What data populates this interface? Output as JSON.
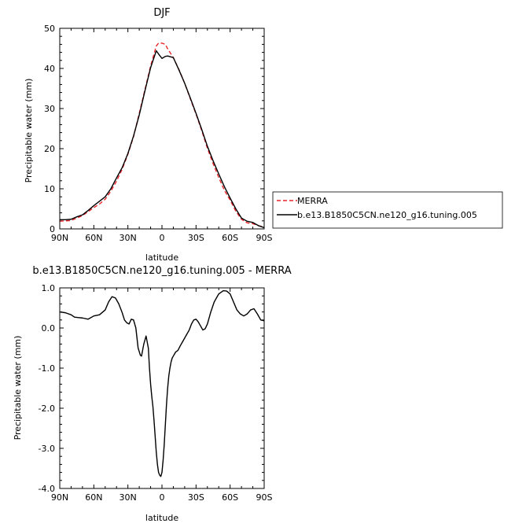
{
  "chart_data": [
    {
      "type": "line",
      "title": "DJF",
      "xlabel": "latitude",
      "ylabel": "Precipitable water (mm)",
      "xlim": [
        90,
        -90
      ],
      "ylim": [
        0,
        50
      ],
      "x_ticks": [
        90,
        60,
        30,
        0,
        -30,
        -60,
        -90
      ],
      "x_tick_labels": [
        "90N",
        "60N",
        "30N",
        "0",
        "30S",
        "60S",
        "90S"
      ],
      "y_ticks": [
        0,
        10,
        20,
        30,
        40,
        50
      ],
      "y_tick_labels": [
        "0",
        "10",
        "20",
        "30",
        "40",
        "50"
      ],
      "legend_position": "right",
      "series": [
        {
          "name": "MERRA",
          "color": "#e8262a",
          "dash": "dashed",
          "x": [
            90,
            85,
            80,
            75,
            70,
            65,
            60,
            55,
            50,
            45,
            40,
            35,
            30,
            25,
            20,
            15,
            10,
            5,
            3,
            0,
            -3,
            -5,
            -10,
            -15,
            -20,
            -25,
            -30,
            -35,
            -40,
            -45,
            -50,
            -55,
            -60,
            -65,
            -70,
            -75,
            -80,
            -85,
            -90
          ],
          "values": [
            1.9,
            2.0,
            2.1,
            2.7,
            3.3,
            4.3,
            5.3,
            6.2,
            7.4,
            9.4,
            11.9,
            14.9,
            18.6,
            23.0,
            28.8,
            34.7,
            40.6,
            45.6,
            46.3,
            46.3,
            46.0,
            44.9,
            42.7,
            39.7,
            36.3,
            32.4,
            28.6,
            24.5,
            20.1,
            16.3,
            12.8,
            9.6,
            7.2,
            4.4,
            2.4,
            1.5,
            1.3,
            0.8,
            0.5
          ]
        },
        {
          "name": "b.e13.B1850C5CN.ne120_g16.tuning.005",
          "color": "#000000",
          "dash": "solid",
          "x": [
            90,
            85,
            80,
            75,
            70,
            65,
            60,
            55,
            50,
            45,
            40,
            35,
            30,
            25,
            20,
            15,
            10,
            5,
            3,
            0,
            -3,
            -5,
            -10,
            -15,
            -20,
            -25,
            -30,
            -35,
            -40,
            -45,
            -50,
            -55,
            -60,
            -65,
            -70,
            -75,
            -80,
            -85,
            -90
          ],
          "values": [
            2.3,
            2.3,
            2.4,
            3.0,
            3.5,
            4.6,
            5.8,
            6.9,
            8.0,
            10.0,
            12.7,
            15.3,
            18.8,
            23.2,
            28.4,
            34.4,
            40.2,
            44.4,
            43.6,
            42.5,
            43.0,
            43.1,
            42.7,
            39.6,
            36.3,
            32.6,
            28.8,
            24.8,
            20.6,
            17.0,
            13.7,
            10.5,
            7.7,
            5.0,
            2.7,
            1.9,
            1.6,
            0.8,
            0.3
          ]
        }
      ]
    },
    {
      "type": "line",
      "title": "b.e13.B1850C5CN.ne120_g16.tuning.005 - MERRA",
      "xlabel": "latitude",
      "ylabel": "Precipitable water (mm)",
      "xlim": [
        90,
        -90
      ],
      "ylim": [
        -4.0,
        1.0
      ],
      "x_ticks": [
        90,
        60,
        30,
        0,
        -30,
        -60,
        -90
      ],
      "x_tick_labels": [
        "90N",
        "60N",
        "30N",
        "0",
        "30S",
        "60S",
        "90S"
      ],
      "y_ticks": [
        1.0,
        0.0,
        -1.0,
        -2.0,
        -3.0,
        -4.0
      ],
      "y_tick_labels": [
        "1.0",
        "0.0",
        "-1.0",
        "-2.0",
        "-3.0",
        "-4.0"
      ],
      "series": [
        {
          "color": "#000000",
          "dash": "solid",
          "x": [
            90,
            85,
            80,
            77,
            74,
            70,
            65,
            60,
            55,
            50,
            47,
            44,
            41,
            38,
            35,
            33,
            31,
            29,
            27,
            25,
            23,
            21,
            19,
            18,
            16,
            14,
            12,
            11,
            10,
            9,
            8,
            7,
            6,
            5,
            4,
            3,
            2,
            1,
            0,
            -1,
            -2,
            -3,
            -4,
            -5,
            -6,
            -7,
            -8,
            -9,
            -10,
            -12,
            -14,
            -16,
            -18,
            -20,
            -22,
            -24,
            -26,
            -28,
            -30,
            -32,
            -34,
            -36,
            -38,
            -40,
            -43,
            -46,
            -50,
            -54,
            -57,
            -60,
            -63,
            -66,
            -69,
            -72,
            -75,
            -78,
            -81,
            -84,
            -87,
            -90
          ],
          "values": [
            0.4,
            0.38,
            0.33,
            0.27,
            0.26,
            0.25,
            0.22,
            0.3,
            0.33,
            0.45,
            0.65,
            0.78,
            0.75,
            0.6,
            0.38,
            0.2,
            0.13,
            0.1,
            0.22,
            0.2,
            0.0,
            -0.5,
            -0.68,
            -0.7,
            -0.4,
            -0.2,
            -0.5,
            -1.0,
            -1.4,
            -1.7,
            -1.95,
            -2.3,
            -2.7,
            -3.1,
            -3.4,
            -3.6,
            -3.67,
            -3.7,
            -3.6,
            -3.3,
            -2.9,
            -2.4,
            -1.9,
            -1.5,
            -1.2,
            -1.0,
            -0.85,
            -0.75,
            -0.7,
            -0.6,
            -0.56,
            -0.45,
            -0.35,
            -0.25,
            -0.15,
            -0.05,
            0.1,
            0.2,
            0.22,
            0.15,
            0.05,
            -0.05,
            -0.02,
            0.1,
            0.4,
            0.65,
            0.85,
            0.93,
            0.92,
            0.85,
            0.65,
            0.45,
            0.35,
            0.3,
            0.35,
            0.45,
            0.48,
            0.35,
            0.2,
            0.18
          ]
        }
      ]
    }
  ]
}
